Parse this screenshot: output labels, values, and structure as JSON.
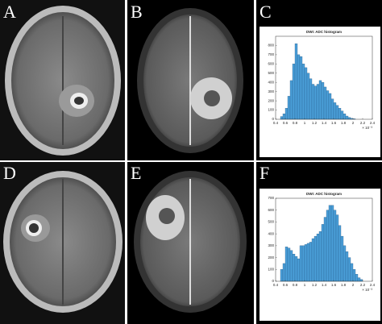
{
  "panel_labels": [
    "A",
    "B",
    "C",
    "D",
    "E",
    "F"
  ],
  "chart_data": [
    {
      "type": "histogram",
      "title": "DWI: ADC histogram",
      "x_multiplier": "× 10⁻³",
      "color": "#4a9fd8",
      "bins": [
        0.5,
        0.55,
        0.6,
        0.65,
        0.7,
        0.75,
        0.8,
        0.85,
        0.9,
        0.95,
        1,
        1.05,
        1.1,
        1.15,
        1.2,
        1.25,
        1.3,
        1.35,
        1.4,
        1.45,
        1.5,
        1.55,
        1.6,
        1.65,
        1.7,
        1.75,
        1.8,
        1.85,
        1.9,
        1.95,
        2,
        2.05
      ],
      "values": [
        30,
        60,
        120,
        250,
        420,
        600,
        820,
        700,
        680,
        600,
        560,
        500,
        440,
        380,
        360,
        380,
        420,
        400,
        350,
        310,
        280,
        220,
        180,
        150,
        120,
        90,
        60,
        35,
        20,
        10,
        5
      ],
      "xlim": [
        0.4,
        2.4
      ],
      "xticks": [
        0.4,
        0.6,
        0.8,
        1,
        1.2,
        1.4,
        1.6,
        1.8,
        2,
        2.2,
        2.4
      ],
      "ylim": [
        0,
        900
      ],
      "yticks": [
        0,
        100,
        200,
        300,
        400,
        500,
        600,
        700,
        800
      ]
    },
    {
      "type": "histogram",
      "title": "DWI: ADC histogram",
      "x_multiplier": "× 10⁻³",
      "color": "#4a9fd8",
      "bins": [
        0.5,
        0.55,
        0.6,
        0.65,
        0.7,
        0.75,
        0.8,
        0.85,
        0.9,
        0.95,
        1,
        1.05,
        1.1,
        1.15,
        1.2,
        1.25,
        1.3,
        1.35,
        1.4,
        1.45,
        1.5,
        1.55,
        1.6,
        1.65,
        1.7,
        1.75,
        1.8,
        1.85,
        1.9,
        1.95,
        2,
        2.05,
        2.1,
        2.15,
        2.2
      ],
      "values": [
        100,
        150,
        290,
        280,
        260,
        230,
        210,
        190,
        300,
        300,
        310,
        320,
        330,
        360,
        380,
        400,
        420,
        480,
        540,
        600,
        640,
        640,
        600,
        560,
        470,
        380,
        300,
        250,
        200,
        150,
        100,
        60,
        30,
        15
      ],
      "xlim": [
        0.4,
        2.4
      ],
      "xticks": [
        0.4,
        0.6,
        0.8,
        1,
        1.2,
        1.4,
        1.6,
        1.8,
        2,
        2.2,
        2.4
      ],
      "ylim": [
        0,
        700
      ],
      "yticks": [
        0,
        100,
        200,
        300,
        400,
        500,
        600,
        700
      ]
    }
  ]
}
